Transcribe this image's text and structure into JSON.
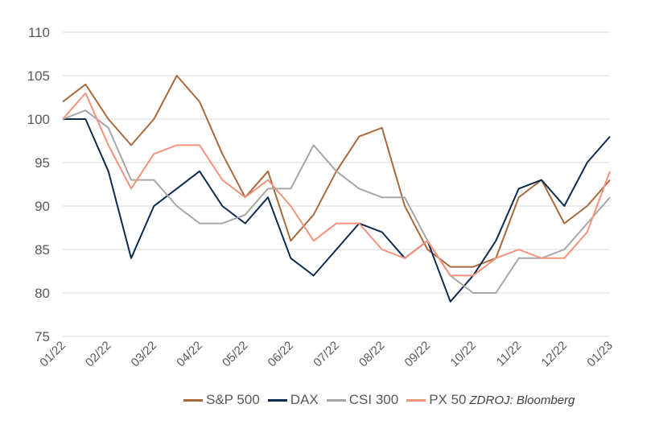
{
  "chart_data": {
    "type": "line",
    "title": "",
    "xlabel": "",
    "ylabel": "",
    "ylim": [
      75,
      110
    ],
    "y_ticks": [
      "75",
      "80",
      "85",
      "90",
      "95",
      "100",
      "105",
      "110"
    ],
    "x_ticks": [
      "01/22",
      "02/22",
      "03/22",
      "04/22",
      "05/22",
      "06/22",
      "07/22",
      "08/22",
      "09/22",
      "10/22",
      "11/22",
      "12/22",
      "01/23"
    ],
    "grid": "horizontal",
    "legend": "bottom",
    "x": [
      "01/22",
      "01/22 mid",
      "02/22",
      "02/22 mid",
      "03/22",
      "03/22 mid",
      "04/22",
      "04/22 mid",
      "05/22",
      "05/22 mid",
      "06/22",
      "06/22 mid",
      "07/22",
      "07/22 mid",
      "08/22",
      "08/22 mid",
      "09/22",
      "09/22 mid",
      "10/22",
      "10/22 mid",
      "11/22",
      "11/22 mid",
      "12/22",
      "12/22 mid",
      "01/23"
    ],
    "series": [
      {
        "name": "S&P 500",
        "color": "#a86a3d",
        "values": [
          102,
          104,
          100,
          97,
          100,
          105,
          102,
          96,
          91,
          94,
          86,
          89,
          94,
          98,
          99,
          90,
          85,
          83,
          83,
          84,
          91,
          93,
          88,
          90,
          93
        ]
      },
      {
        "name": "DAX",
        "color": "#0d2a4f",
        "values": [
          100,
          100,
          94,
          84,
          90,
          92,
          94,
          90,
          88,
          91,
          84,
          82,
          85,
          88,
          87,
          84,
          86,
          79,
          82,
          86,
          92,
          93,
          90,
          95,
          98
        ]
      },
      {
        "name": "CSI 300",
        "color": "#a6a6a6",
        "values": [
          100,
          101,
          99,
          93,
          93,
          90,
          88,
          88,
          89,
          92,
          92,
          97,
          94,
          92,
          91,
          91,
          86,
          82,
          80,
          80,
          84,
          84,
          85,
          88,
          91
        ]
      },
      {
        "name": "PX 50",
        "color": "#f4927b",
        "values": [
          100,
          103,
          97,
          92,
          96,
          97,
          97,
          93,
          91,
          93,
          90,
          86,
          88,
          88,
          85,
          84,
          86,
          82,
          82,
          84,
          85,
          84,
          84,
          87,
          94
        ]
      }
    ],
    "source": "ZDROJ: Bloomberg"
  }
}
